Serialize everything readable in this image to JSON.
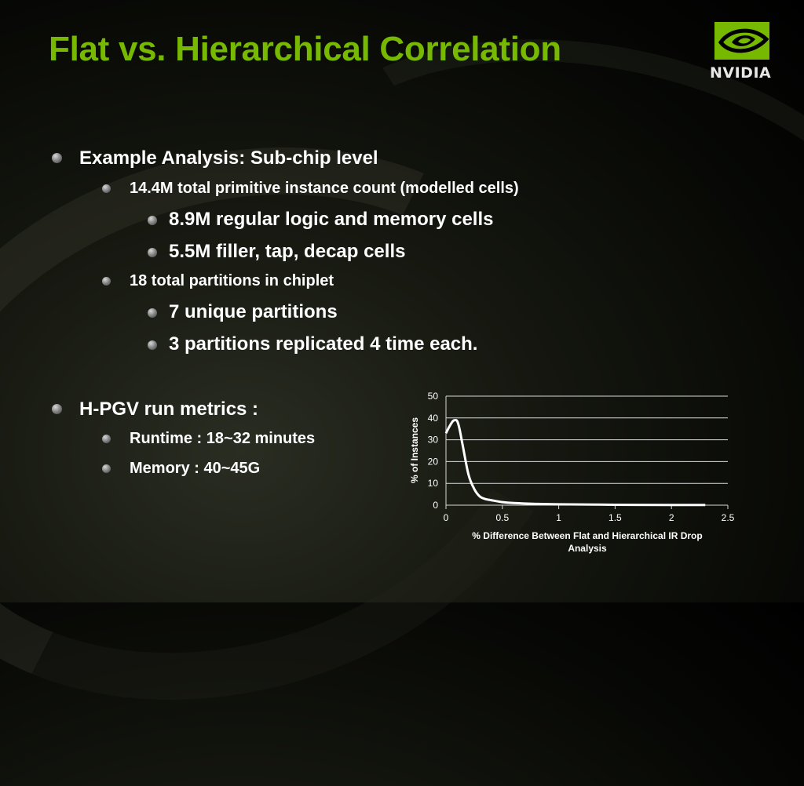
{
  "slide": {
    "title": "Flat vs. Hierarchical Correlation",
    "logo_text": "NVIDIA",
    "accent_color": "#76b900"
  },
  "bullets": [
    {
      "level": 1,
      "text": "Example Analysis:  Sub-chip level"
    },
    {
      "level": 2,
      "text": "14.4M total primitive instance count (modelled cells)"
    },
    {
      "level": 3,
      "text": "8.9M regular logic and memory cells"
    },
    {
      "level": 3,
      "text": "5.5M filler, tap, decap cells"
    },
    {
      "level": 2,
      "text": "18 total partitions in chiplet"
    },
    {
      "level": 3,
      "text": "7 unique partitions"
    },
    {
      "level": 3,
      "text": "3 partitions replicated 4 time each."
    },
    {
      "level": 1,
      "text": "H-PGV run metrics :"
    },
    {
      "level": 2,
      "text": "Runtime : 18~32 minutes"
    },
    {
      "level": 2,
      "text": "Memory :  40~45G"
    }
  ],
  "chart_data": {
    "type": "line",
    "title": "",
    "xlabel": "% Difference Between Flat and Hierarchical IR Drop Analysis",
    "ylabel": "% of Instances",
    "xlim": [
      0,
      2.5
    ],
    "ylim": [
      0,
      50
    ],
    "x_ticks": [
      "0",
      "0.5",
      "1",
      "1.5",
      "2",
      "2.5"
    ],
    "y_ticks": [
      "0",
      "10",
      "20",
      "30",
      "40",
      "50"
    ],
    "grid": "horizontal",
    "series": [
      {
        "x": [
          0,
          0.03,
          0.06,
          0.08,
          0.1,
          0.12,
          0.15,
          0.2,
          0.25,
          0.3,
          0.35,
          0.4,
          0.5,
          0.6,
          0.8,
          1.0,
          1.5,
          2.0,
          2.3
        ],
        "y": [
          33,
          36,
          38.5,
          39,
          38.5,
          35,
          27,
          14,
          7.5,
          4,
          2.8,
          2.3,
          1.4,
          1.0,
          0.6,
          0.4,
          0.2,
          0.1,
          0.1
        ],
        "color": "#ffffff"
      }
    ]
  }
}
